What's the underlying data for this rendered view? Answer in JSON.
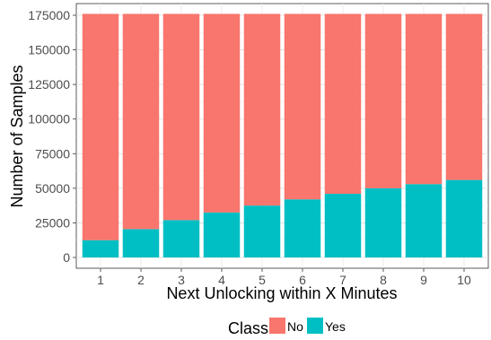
{
  "chart_data": {
    "type": "bar",
    "stacked": true,
    "categories": [
      "1",
      "2",
      "3",
      "4",
      "5",
      "6",
      "7",
      "8",
      "9",
      "10"
    ],
    "series": [
      {
        "name": "No",
        "color": "#F8766D",
        "values": [
          163500,
          155500,
          149000,
          143500,
          138500,
          134000,
          130000,
          126000,
          123000,
          120000
        ]
      },
      {
        "name": "Yes",
        "color": "#00BFC4",
        "values": [
          12500,
          20500,
          27000,
          32500,
          37500,
          42000,
          46000,
          50000,
          53000,
          56000
        ]
      }
    ],
    "xlabel": "Next Unlocking within X Minutes",
    "ylabel": "Number of Samples",
    "ylim": [
      0,
      180000
    ],
    "yticks": [
      0,
      25000,
      50000,
      75000,
      100000,
      125000,
      150000,
      175000
    ],
    "grid": true,
    "legend": {
      "title": "Class",
      "position": "bottom"
    }
  }
}
